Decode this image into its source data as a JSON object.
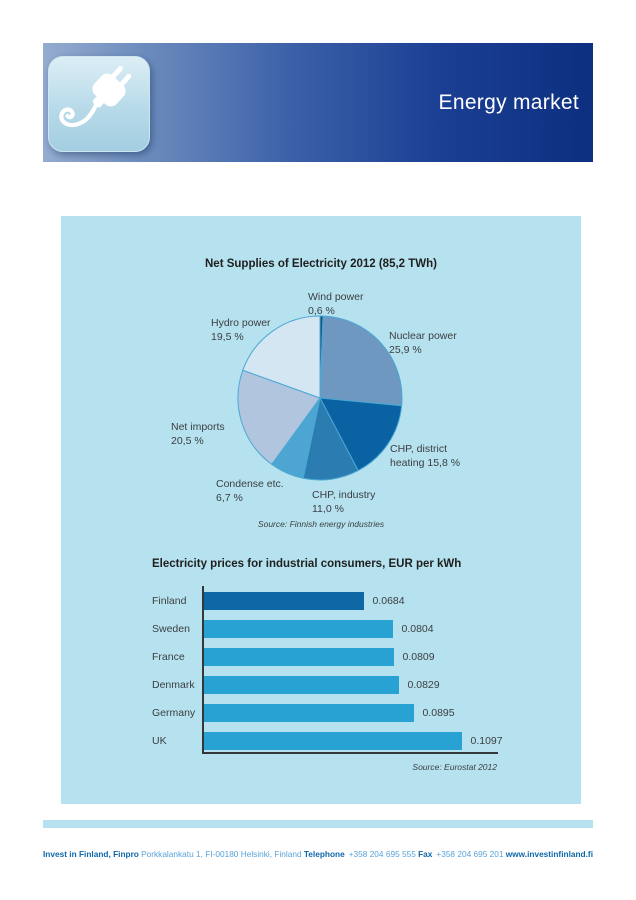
{
  "header": {
    "title": "Energy market",
    "icon": "power-plug-icon"
  },
  "colors": {
    "banner_gradient_start": "#94accf",
    "banner_gradient_end": "#0d2f80",
    "panel_background": "#b5e2ee",
    "pie_stroke": "#49a8d5",
    "axis": "#34373b",
    "text_dark": "#1f1f1f",
    "text_gray": "#3c3e42",
    "footer_bold": "#0e67ab",
    "footer_light": "#58a3d8"
  },
  "chart_data": [
    {
      "type": "pie",
      "title": "Net Supplies of Electricity 2012 (85,2 TWh)",
      "source": "Source: Finnish energy industries",
      "direction": "clockwise",
      "start_angle_deg": 0,
      "slices": [
        {
          "id": "wind",
          "name": "Wind power",
          "value": 0.6,
          "color": "#175582",
          "label_line1": "Wind power",
          "label_line2": "0,6 %"
        },
        {
          "id": "nuclear",
          "name": "Nuclear power",
          "value": 25.9,
          "color": "#6f98c0",
          "label_line1": "Nuclear power",
          "label_line2": "25,9 %"
        },
        {
          "id": "chpdistrict",
          "name": "CHP, district heating",
          "value": 15.8,
          "color": "#0b62a2",
          "label_line1": "CHP, district",
          "label_line2": "heating 15,8 %"
        },
        {
          "id": "chpindustry",
          "name": "CHP, industry",
          "value": 11.0,
          "color": "#2b7cb1",
          "label_line1": "CHP, industry",
          "label_line2": "11,0 %"
        },
        {
          "id": "condense",
          "name": "Condense etc.",
          "value": 6.7,
          "color": "#4da5d2",
          "label_line1": "Condense etc.",
          "label_line2": "6,7 %"
        },
        {
          "id": "netimports",
          "name": "Net imports",
          "value": 20.5,
          "color": "#b1c5de",
          "label_line1": "Net imports",
          "label_line2": "20,5 %"
        },
        {
          "id": "hydro",
          "name": "Hydro power",
          "value": 19.5,
          "color": "#d3e6f2",
          "label_line1": "Hydro power",
          "label_line2": "19,5 %"
        }
      ]
    },
    {
      "type": "bar",
      "orientation": "horizontal",
      "title": "Electricity prices for industrial consumers, EUR per kWh",
      "source": "Source: Eurostat 2012",
      "categories": [
        "Finland",
        "Sweden",
        "France",
        "Denmark",
        "Germany",
        "UK"
      ],
      "values": [
        0.0684,
        0.0804,
        0.0809,
        0.0829,
        0.0895,
        0.1097
      ],
      "value_labels": [
        "0.0684",
        "0.0804",
        "0.0809",
        "0.0829",
        "0.0895",
        "0.1097"
      ],
      "bar_colors": [
        "#0f67a6",
        "#27a2d2",
        "#27a2d2",
        "#27a2d2",
        "#27a2d2",
        "#27a2d2"
      ],
      "xlim": [
        0,
        0.1097
      ],
      "grid": false,
      "legend": false
    }
  ],
  "footer": {
    "org": "Invest in Finland, Finpro",
    "address": "Porkkalankatu 1, FI-00180 Helsinki, Finland",
    "telephone_label": "Telephone",
    "telephone": "+358 204 695 555",
    "fax_label": "Fax",
    "fax": "+358 204 695 201",
    "website": "www.investinfinland.fi"
  }
}
